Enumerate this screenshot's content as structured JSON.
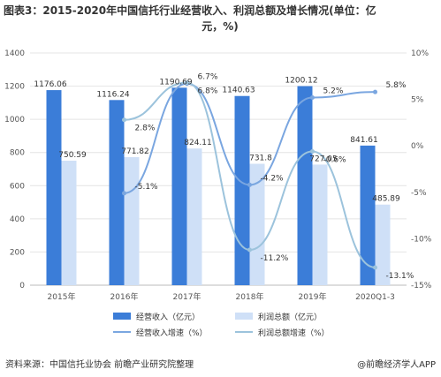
{
  "title": "图表3：2015-2020年中国信托行业经营收入、利润总额及增长情况(单位：亿",
  "title_cont": "元，%)",
  "source": "资料来源：中国信托业协会 前瞻产业研究院整理",
  "brand": "@前瞻经济学人APP",
  "colors": {
    "revenue_bar": "#3b7dd8",
    "profit_bar": "#cfe0f7",
    "revenue_line": "#7aa6e0",
    "profit_line": "#9cc3dc"
  },
  "chart_data": {
    "type": "bar",
    "categories": [
      "2015年",
      "2016年",
      "2017年",
      "2018年",
      "2019年",
      "2020Q1-3"
    ],
    "y_left": {
      "min": 0,
      "max": 1400,
      "ticks": [
        0,
        200,
        400,
        600,
        800,
        1000,
        1200,
        1400
      ]
    },
    "y_right": {
      "min": -15,
      "max": 10,
      "ticks": [
        "-15%",
        "-10%",
        "-5%",
        "0%",
        "5%",
        "10%"
      ]
    },
    "series": [
      {
        "name": "经营收入（亿元）",
        "kind": "bar",
        "axis": "left",
        "values": [
          1176.06,
          1116.24,
          1190.69,
          1140.63,
          1200.12,
          841.61
        ],
        "labels": [
          "1176.06",
          "1116.24",
          "1190.69",
          "1140.63",
          "1200.12",
          "841.61"
        ]
      },
      {
        "name": "利润总额（亿元）",
        "kind": "bar",
        "axis": "left",
        "values": [
          750.59,
          771.82,
          824.11,
          731.8,
          727.05,
          485.89
        ],
        "labels": [
          "750.59",
          "771.82",
          "824.11",
          "731.8",
          "727.05",
          "485.89"
        ]
      },
      {
        "name": "经营收入增速（%）",
        "kind": "line",
        "axis": "right",
        "values": [
          null,
          -5.1,
          6.7,
          -4.2,
          5.2,
          5.8
        ],
        "labels": [
          "",
          "-5.1%",
          "6.7%",
          "-4.2%",
          "5.2%",
          "5.8%"
        ]
      },
      {
        "name": "利润总额增速（%）",
        "kind": "line",
        "axis": "right",
        "values": [
          null,
          2.8,
          6.8,
          -11.2,
          -0.6,
          -13.1
        ],
        "labels": [
          "",
          "2.8%",
          "6.8%",
          "-11.2%",
          "-0.6%",
          "-13.1%"
        ]
      }
    ],
    "grid": true,
    "legend": "bottom"
  }
}
